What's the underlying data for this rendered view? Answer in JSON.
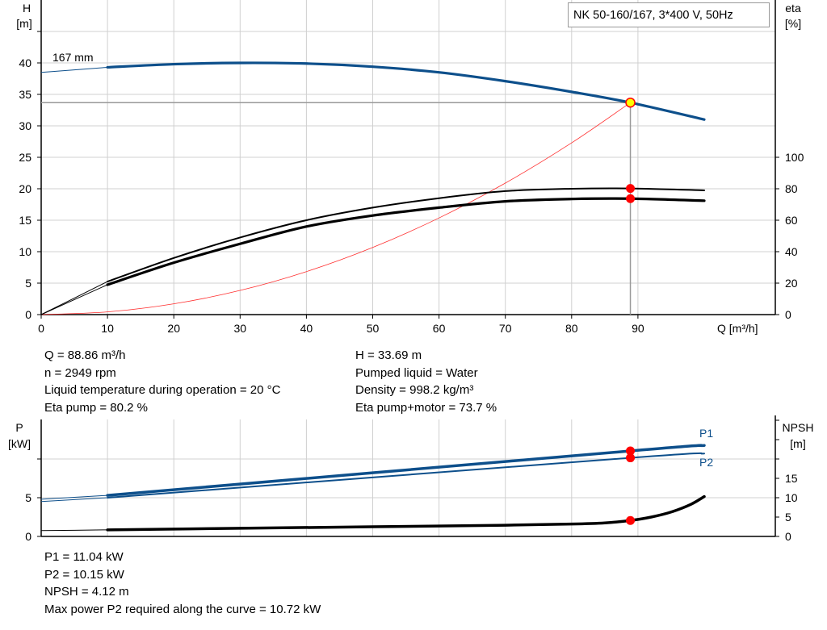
{
  "title": "NK 50-160/167, 3*400 V, 50Hz",
  "colors": {
    "head": "#0d4f8b",
    "power": "#0d4f8b",
    "efficiency": "#000000",
    "npsh": "#000000",
    "system_curve": "#ff3030",
    "duty_point": "#ff0000",
    "duty_point_head": "#ffff00",
    "grid": "#d0d0d0"
  },
  "chart_data": [
    {
      "type": "line",
      "xlabel": "Q [m³/h]",
      "ylabel": "H",
      "ylabel_unit": "[m]",
      "y2label": "eta",
      "y2label_unit": "[%]",
      "xlim": [
        0,
        100
      ],
      "ylim": [
        0,
        50
      ],
      "y2lim": [
        0,
        200
      ],
      "xticks": [
        "0",
        "10",
        "20",
        "30",
        "40",
        "50",
        "60",
        "70",
        "80",
        "90"
      ],
      "yticks": [
        "0",
        "5",
        "10",
        "15",
        "20",
        "25",
        "30",
        "35",
        "40"
      ],
      "y2ticks": [
        "0",
        "20",
        "40",
        "60",
        "80",
        "100"
      ],
      "grid": true,
      "curve_label": "167 mm",
      "series": [
        {
          "key": "head",
          "axis": "y",
          "x": [
            0,
            10,
            20,
            30,
            40,
            50,
            60,
            70,
            80,
            88.86,
            100
          ],
          "y": [
            38.5,
            39.3,
            39.8,
            40.0,
            39.9,
            39.4,
            38.5,
            37.1,
            35.4,
            33.69,
            31.0
          ]
        },
        {
          "key": "eta_pump",
          "axis": "y2",
          "x": [
            0,
            10,
            20,
            30,
            40,
            50,
            60,
            70,
            80,
            88.86,
            100
          ],
          "y": [
            0,
            21,
            36,
            49,
            60,
            68,
            74,
            78.5,
            80,
            80.2,
            79
          ]
        },
        {
          "key": "eta_pump_motor",
          "axis": "y2",
          "x": [
            0,
            10,
            20,
            30,
            40,
            50,
            60,
            70,
            80,
            88.86,
            100
          ],
          "y": [
            0,
            19,
            33,
            45,
            56,
            63,
            68,
            72,
            73.5,
            73.7,
            72.4
          ]
        },
        {
          "key": "system_curve",
          "axis": "y",
          "x": [
            0,
            10,
            20,
            30,
            40,
            50,
            60,
            70,
            80,
            88.86
          ],
          "y": [
            0,
            0.43,
            1.71,
            3.84,
            6.83,
            10.67,
            15.36,
            20.9,
            27.3,
            33.69
          ]
        }
      ],
      "duty_point": {
        "Q": 88.86,
        "H": 33.69,
        "eta_pump": 80.2,
        "eta_pump_motor": 73.7
      }
    },
    {
      "type": "line",
      "ylabel": "P",
      "ylabel_unit": "[kW]",
      "y2label": "NPSH",
      "y2label_unit": "[m]",
      "xlim": [
        0,
        100
      ],
      "ylim": [
        0,
        15
      ],
      "y2lim": [
        0,
        30
      ],
      "yticks": [
        "0",
        "5",
        ""
      ],
      "y2ticks": [
        "0",
        "5",
        "10",
        "15",
        "",
        "",
        ""
      ],
      "grid": true,
      "series": [
        {
          "key": "P1",
          "name": "P1",
          "axis": "y",
          "x": [
            0,
            10,
            88.86,
            100
          ],
          "y": [
            4.8,
            5.3,
            11.04,
            11.75
          ]
        },
        {
          "key": "P2",
          "name": "P2",
          "axis": "y",
          "x": [
            0,
            10,
            88.86,
            100
          ],
          "y": [
            4.5,
            5.0,
            10.15,
            10.7
          ]
        },
        {
          "key": "npsh",
          "axis": "y2",
          "x": [
            0,
            10,
            30,
            50,
            70,
            80,
            85,
            88.86,
            92,
            95,
            98,
            100
          ],
          "y": [
            1.5,
            1.7,
            2.1,
            2.5,
            2.9,
            3.2,
            3.5,
            4.12,
            5.0,
            6.3,
            8.3,
            10.3
          ]
        }
      ],
      "duty_point": {
        "Q": 88.86,
        "P1": 11.04,
        "P2": 10.15,
        "NPSH": 4.12
      }
    }
  ],
  "info_top_left": [
    "Q = 88.86 m³/h",
    "n = 2949 rpm",
    "Liquid temperature during operation = 20 °C",
    "Eta pump = 80.2 %"
  ],
  "info_top_right": [
    "H = 33.69 m",
    "Pumped liquid = Water",
    "Density = 998.2 kg/m³",
    "Eta pump+motor = 73.7 %"
  ],
  "info_bottom": [
    "P1 = 11.04 kW",
    "P2 = 10.15 kW",
    "NPSH = 4.12 m",
    "Max power P2 required along the curve = 10.72 kW"
  ]
}
